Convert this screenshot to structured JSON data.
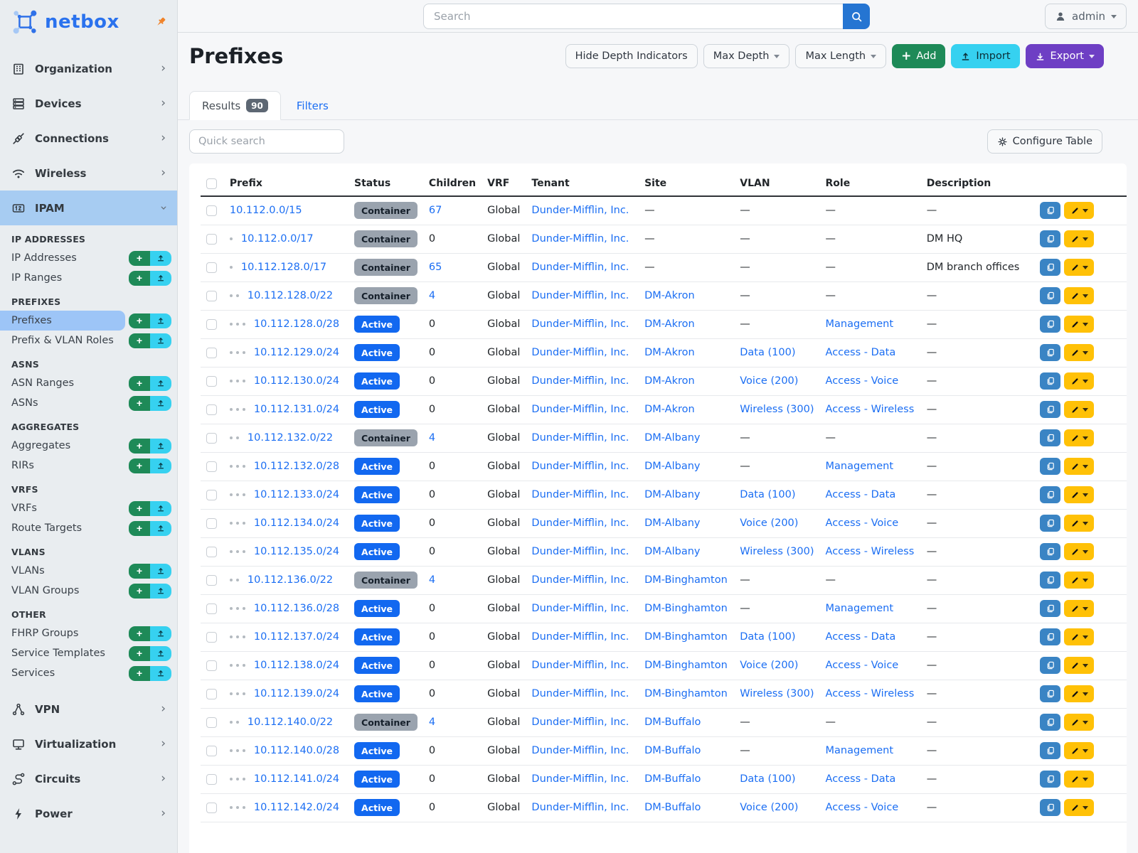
{
  "brand": {
    "name": "netbox"
  },
  "topbar": {
    "search_placeholder": "Search",
    "user": "admin"
  },
  "sidebar": {
    "nav_top": [
      {
        "label": "Organization",
        "icon": "building-icon"
      },
      {
        "label": "Devices",
        "icon": "rack-icon"
      },
      {
        "label": "Connections",
        "icon": "plug-icon"
      },
      {
        "label": "Wireless",
        "icon": "wifi-icon"
      },
      {
        "label": "IPAM",
        "icon": "counter-icon",
        "active": true
      }
    ],
    "ipam_groups": [
      {
        "header": "IP ADDRESSES",
        "items": [
          {
            "label": "IP Addresses"
          },
          {
            "label": "IP Ranges"
          }
        ]
      },
      {
        "header": "PREFIXES",
        "items": [
          {
            "label": "Prefixes",
            "active": true
          },
          {
            "label": "Prefix & VLAN Roles"
          }
        ]
      },
      {
        "header": "ASNS",
        "items": [
          {
            "label": "ASN Ranges"
          },
          {
            "label": "ASNs"
          }
        ]
      },
      {
        "header": "AGGREGATES",
        "items": [
          {
            "label": "Aggregates"
          },
          {
            "label": "RIRs"
          }
        ]
      },
      {
        "header": "VRFS",
        "items": [
          {
            "label": "VRFs"
          },
          {
            "label": "Route Targets"
          }
        ]
      },
      {
        "header": "VLANS",
        "items": [
          {
            "label": "VLANs"
          },
          {
            "label": "VLAN Groups"
          }
        ]
      },
      {
        "header": "OTHER",
        "items": [
          {
            "label": "FHRP Groups"
          },
          {
            "label": "Service Templates"
          },
          {
            "label": "Services"
          }
        ]
      }
    ],
    "nav_bottom": [
      {
        "label": "VPN",
        "icon": "graph-icon"
      },
      {
        "label": "Virtualization",
        "icon": "monitor-icon"
      },
      {
        "label": "Circuits",
        "icon": "route-icon"
      },
      {
        "label": "Power",
        "icon": "bolt-icon"
      }
    ]
  },
  "page": {
    "title": "Prefixes",
    "buttons": {
      "hide_depth": "Hide Depth Indicators",
      "max_depth": "Max Depth",
      "max_length": "Max Length",
      "add": "Add",
      "import": "Import",
      "export": "Export"
    },
    "tabs": {
      "results": "Results",
      "results_count": "90",
      "filters": "Filters"
    },
    "quick_search_placeholder": "Quick search",
    "configure_table": "Configure Table"
  },
  "table": {
    "columns": [
      "Prefix",
      "Status",
      "Children",
      "VRF",
      "Tenant",
      "Site",
      "VLAN",
      "Role",
      "Description"
    ],
    "rows": [
      {
        "depth": 0,
        "prefix": "10.112.0.0/15",
        "status": "Container",
        "children": "67",
        "vrf": "Global",
        "tenant": "Dunder-Mifflin, Inc.",
        "site": "—",
        "vlan": "—",
        "role": "—",
        "description": "—"
      },
      {
        "depth": 1,
        "prefix": "10.112.0.0/17",
        "status": "Container",
        "children": "0",
        "vrf": "Global",
        "tenant": "Dunder-Mifflin, Inc.",
        "site": "—",
        "vlan": "—",
        "role": "—",
        "description": "DM HQ"
      },
      {
        "depth": 1,
        "prefix": "10.112.128.0/17",
        "status": "Container",
        "children": "65",
        "vrf": "Global",
        "tenant": "Dunder-Mifflin, Inc.",
        "site": "—",
        "vlan": "—",
        "role": "—",
        "description": "DM branch offices"
      },
      {
        "depth": 2,
        "prefix": "10.112.128.0/22",
        "status": "Container",
        "children": "4",
        "vrf": "Global",
        "tenant": "Dunder-Mifflin, Inc.",
        "site": "DM-Akron",
        "vlan": "—",
        "role": "—",
        "description": "—"
      },
      {
        "depth": 3,
        "prefix": "10.112.128.0/28",
        "status": "Active",
        "children": "0",
        "vrf": "Global",
        "tenant": "Dunder-Mifflin, Inc.",
        "site": "DM-Akron",
        "vlan": "—",
        "role": "Management",
        "description": "—"
      },
      {
        "depth": 3,
        "prefix": "10.112.129.0/24",
        "status": "Active",
        "children": "0",
        "vrf": "Global",
        "tenant": "Dunder-Mifflin, Inc.",
        "site": "DM-Akron",
        "vlan": "Data (100)",
        "role": "Access - Data",
        "description": "—"
      },
      {
        "depth": 3,
        "prefix": "10.112.130.0/24",
        "status": "Active",
        "children": "0",
        "vrf": "Global",
        "tenant": "Dunder-Mifflin, Inc.",
        "site": "DM-Akron",
        "vlan": "Voice (200)",
        "role": "Access - Voice",
        "description": "—"
      },
      {
        "depth": 3,
        "prefix": "10.112.131.0/24",
        "status": "Active",
        "children": "0",
        "vrf": "Global",
        "tenant": "Dunder-Mifflin, Inc.",
        "site": "DM-Akron",
        "vlan": "Wireless (300)",
        "role": "Access - Wireless",
        "description": "—"
      },
      {
        "depth": 2,
        "prefix": "10.112.132.0/22",
        "status": "Container",
        "children": "4",
        "vrf": "Global",
        "tenant": "Dunder-Mifflin, Inc.",
        "site": "DM-Albany",
        "vlan": "—",
        "role": "—",
        "description": "—"
      },
      {
        "depth": 3,
        "prefix": "10.112.132.0/28",
        "status": "Active",
        "children": "0",
        "vrf": "Global",
        "tenant": "Dunder-Mifflin, Inc.",
        "site": "DM-Albany",
        "vlan": "—",
        "role": "Management",
        "description": "—"
      },
      {
        "depth": 3,
        "prefix": "10.112.133.0/24",
        "status": "Active",
        "children": "0",
        "vrf": "Global",
        "tenant": "Dunder-Mifflin, Inc.",
        "site": "DM-Albany",
        "vlan": "Data (100)",
        "role": "Access - Data",
        "description": "—"
      },
      {
        "depth": 3,
        "prefix": "10.112.134.0/24",
        "status": "Active",
        "children": "0",
        "vrf": "Global",
        "tenant": "Dunder-Mifflin, Inc.",
        "site": "DM-Albany",
        "vlan": "Voice (200)",
        "role": "Access - Voice",
        "description": "—"
      },
      {
        "depth": 3,
        "prefix": "10.112.135.0/24",
        "status": "Active",
        "children": "0",
        "vrf": "Global",
        "tenant": "Dunder-Mifflin, Inc.",
        "site": "DM-Albany",
        "vlan": "Wireless (300)",
        "role": "Access - Wireless",
        "description": "—"
      },
      {
        "depth": 2,
        "prefix": "10.112.136.0/22",
        "status": "Container",
        "children": "4",
        "vrf": "Global",
        "tenant": "Dunder-Mifflin, Inc.",
        "site": "DM-Binghamton",
        "vlan": "—",
        "role": "—",
        "description": "—"
      },
      {
        "depth": 3,
        "prefix": "10.112.136.0/28",
        "status": "Active",
        "children": "0",
        "vrf": "Global",
        "tenant": "Dunder-Mifflin, Inc.",
        "site": "DM-Binghamton",
        "vlan": "—",
        "role": "Management",
        "description": "—"
      },
      {
        "depth": 3,
        "prefix": "10.112.137.0/24",
        "status": "Active",
        "children": "0",
        "vrf": "Global",
        "tenant": "Dunder-Mifflin, Inc.",
        "site": "DM-Binghamton",
        "vlan": "Data (100)",
        "role": "Access - Data",
        "description": "—"
      },
      {
        "depth": 3,
        "prefix": "10.112.138.0/24",
        "status": "Active",
        "children": "0",
        "vrf": "Global",
        "tenant": "Dunder-Mifflin, Inc.",
        "site": "DM-Binghamton",
        "vlan": "Voice (200)",
        "role": "Access - Voice",
        "description": "—"
      },
      {
        "depth": 3,
        "prefix": "10.112.139.0/24",
        "status": "Active",
        "children": "0",
        "vrf": "Global",
        "tenant": "Dunder-Mifflin, Inc.",
        "site": "DM-Binghamton",
        "vlan": "Wireless (300)",
        "role": "Access - Wireless",
        "description": "—"
      },
      {
        "depth": 2,
        "prefix": "10.112.140.0/22",
        "status": "Container",
        "children": "4",
        "vrf": "Global",
        "tenant": "Dunder-Mifflin, Inc.",
        "site": "DM-Buffalo",
        "vlan": "—",
        "role": "—",
        "description": "—"
      },
      {
        "depth": 3,
        "prefix": "10.112.140.0/28",
        "status": "Active",
        "children": "0",
        "vrf": "Global",
        "tenant": "Dunder-Mifflin, Inc.",
        "site": "DM-Buffalo",
        "vlan": "—",
        "role": "Management",
        "description": "—"
      },
      {
        "depth": 3,
        "prefix": "10.112.141.0/24",
        "status": "Active",
        "children": "0",
        "vrf": "Global",
        "tenant": "Dunder-Mifflin, Inc.",
        "site": "DM-Buffalo",
        "vlan": "Data (100)",
        "role": "Access - Data",
        "description": "—"
      },
      {
        "depth": 3,
        "prefix": "10.112.142.0/24",
        "status": "Active",
        "children": "0",
        "vrf": "Global",
        "tenant": "Dunder-Mifflin, Inc.",
        "site": "DM-Buffalo",
        "vlan": "Voice (200)",
        "role": "Access - Voice",
        "description": "—"
      }
    ]
  },
  "colors": {
    "link": "#1b6ef3",
    "badge_container": "#9aa3ae",
    "badge_active": "#1268f0",
    "add_green": "#1e8a58",
    "import_cyan": "#36d1f0",
    "export_purple": "#6e3fc4",
    "edit_yellow": "#ffc107",
    "copy_blue": "#3a84c4",
    "search_blue": "#2575d2",
    "sidebar_active": "#a7ccf2",
    "sidebar_item_active": "#9dc5f7",
    "pin_orange": "#f08228"
  }
}
